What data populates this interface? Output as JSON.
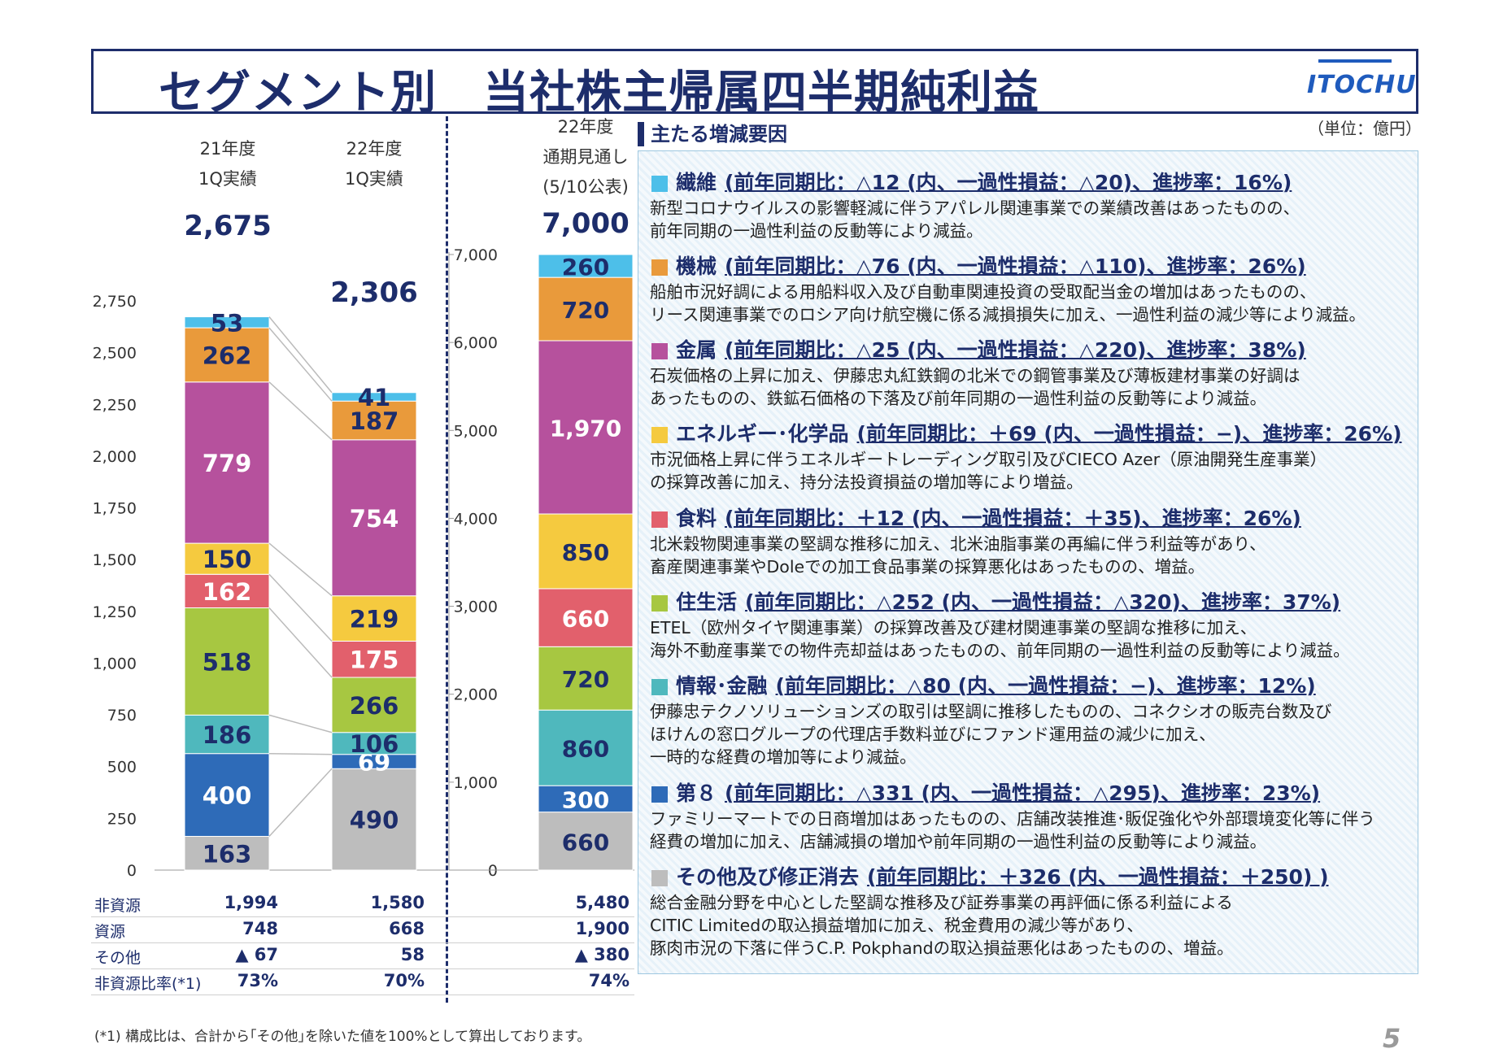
{
  "title": "セグメント別　当社株主帰属四半期純利益",
  "logo_text": "ITOCHU",
  "columns": [
    {
      "head": [
        "21年度",
        "1Q実績"
      ],
      "total": "2,675"
    },
    {
      "head": [
        "22年度",
        "1Q実績"
      ],
      "total": "2,306"
    },
    {
      "head": [
        "22年度",
        "通期見通し",
        "(5/10公表)"
      ],
      "total": "7,000"
    }
  ],
  "summary": {
    "labels": [
      "非資源",
      "資源",
      "その他",
      "非資源比率(*1)"
    ],
    "col1": [
      "1,994",
      "748",
      "▲ 67",
      "73%"
    ],
    "col2": [
      "1,580",
      "668",
      "58",
      "70%"
    ],
    "col3": [
      "5,480",
      "1,900",
      "▲ 380",
      "74%"
    ]
  },
  "chart_data": [
    {
      "type": "bar",
      "title": "21年度 1Q実績 / 22年度 1Q実績",
      "stacked": true,
      "categories": [
        "21年度 1Q実績",
        "22年度 1Q実績"
      ],
      "series": [
        {
          "name": "その他及び修正消去",
          "color": "#bdbdbd",
          "values": [
            163,
            490
          ]
        },
        {
          "name": "第８",
          "color": "#2e6bb8",
          "values": [
            400,
            69
          ]
        },
        {
          "name": "情報・金融",
          "color": "#4fb8bd",
          "values": [
            186,
            106
          ]
        },
        {
          "name": "住生活",
          "color": "#a7c741",
          "values": [
            518,
            266
          ]
        },
        {
          "name": "食料",
          "color": "#e2606c",
          "values": [
            162,
            175
          ]
        },
        {
          "name": "エネルギー・化学品",
          "color": "#f5ca3f",
          "values": [
            150,
            219
          ]
        },
        {
          "name": "金属",
          "color": "#b6519d",
          "values": [
            779,
            754
          ]
        },
        {
          "name": "機械",
          "color": "#e99a3b",
          "values": [
            262,
            187
          ]
        },
        {
          "name": "繊維",
          "color": "#4dbfe9",
          "values": [
            53,
            41
          ]
        }
      ],
      "labels": [
        [
          "163",
          "400",
          "186",
          "518",
          "162",
          "150",
          "779",
          "262",
          "53"
        ],
        [
          "490",
          "69",
          "106",
          "266",
          "175",
          "219",
          "754",
          "187",
          "41"
        ]
      ],
      "ylim": [
        0,
        2750
      ],
      "yticks": [
        "0",
        "250",
        "500",
        "750",
        "1,000",
        "1,250",
        "1,500",
        "1,750",
        "2,000",
        "2,250",
        "2,500",
        "2,750"
      ]
    },
    {
      "type": "bar",
      "title": "22年度 通期見通し (5/10公表)",
      "stacked": true,
      "categories": [
        "22年度 通期見通し"
      ],
      "series": [
        {
          "name": "その他及び修正消去",
          "color": "#bdbdbd",
          "values": [
            660
          ]
        },
        {
          "name": "第８",
          "color": "#2e6bb8",
          "values": [
            300
          ]
        },
        {
          "name": "情報・金融",
          "color": "#4fb8bd",
          "values": [
            860
          ]
        },
        {
          "name": "住生活",
          "color": "#a7c741",
          "values": [
            720
          ]
        },
        {
          "name": "食料",
          "color": "#e2606c",
          "values": [
            660
          ]
        },
        {
          "name": "エネルギー・化学品",
          "color": "#f5ca3f",
          "values": [
            850
          ]
        },
        {
          "name": "金属",
          "color": "#b6519d",
          "values": [
            1970
          ]
        },
        {
          "name": "機械",
          "color": "#e99a3b",
          "values": [
            720
          ]
        },
        {
          "name": "繊維",
          "color": "#4dbfe9",
          "values": [
            260
          ]
        }
      ],
      "labels": [
        [
          "660",
          "300",
          "860",
          "720",
          "660",
          "850",
          "1,970",
          "720",
          "260"
        ]
      ],
      "ylim": [
        0,
        7000
      ],
      "yticks": [
        "0",
        "1,000",
        "2,000",
        "3,000",
        "4,000",
        "5,000",
        "6,000",
        "7,000"
      ]
    }
  ],
  "panel": {
    "head": "主たる増減要因",
    "unit": "（単位：億円）",
    "segments": [
      {
        "color": "#4dbfe9",
        "name": "繊維",
        "stat": "(前年同期比：△12 (内、一過性損益：△20)、進捗率：16%)",
        "lines": [
          "新型コロナウイルスの影響軽減に伴うアパレル関連事業での業績改善はあったものの、",
          "前年同期の一過性利益の反動等により減益。"
        ]
      },
      {
        "color": "#e99a3b",
        "name": "機械",
        "stat": "(前年同期比：△76 (内、一過性損益：△110)、進捗率：26%)",
        "lines": [
          "船舶市況好調による用船料収入及び自動車関連投資の受取配当金の増加はあったものの、",
          "リース関連事業でのロシア向け航空機に係る減損損失に加え、一過性利益の減少等により減益。"
        ]
      },
      {
        "color": "#b6519d",
        "name": "金属",
        "stat": "(前年同期比：△25 (内、一過性損益：△220)、進捗率：38%)",
        "lines": [
          "石炭価格の上昇に加え、伊藤忠丸紅鉄鋼の北米での鋼管事業及び薄板建材事業の好調は",
          "あったものの、鉄鉱石価格の下落及び前年同期の一過性利益の反動等により減益。"
        ]
      },
      {
        "color": "#f5ca3f",
        "name": "エネルギー･化学品",
        "stat": "(前年同期比：＋69 (内、一過性損益：−)、進捗率：26%)",
        "lines": [
          "市況価格上昇に伴うエネルギートレーディング取引及びCIECO Azer（原油開発生産事業）",
          "の採算改善に加え、持分法投資損益の増加等により増益。"
        ]
      },
      {
        "color": "#e2606c",
        "name": "食料",
        "stat": "(前年同期比：＋12 (内、一過性損益：＋35)、進捗率：26%)",
        "lines": [
          "北米穀物関連事業の堅調な推移に加え、北米油脂事業の再編に伴う利益等があり、",
          "畜産関連事業やDoleでの加工食品事業の採算悪化はあったものの、増益。"
        ]
      },
      {
        "color": "#a7c741",
        "name": "住生活",
        "stat": "(前年同期比：△252 (内、一過性損益：△320)、進捗率：37%)",
        "lines": [
          "ETEL（欧州タイヤ関連事業）の採算改善及び建材関連事業の堅調な推移に加え、",
          "海外不動産事業での物件売却益はあったものの、前年同期の一過性利益の反動等により減益。"
        ]
      },
      {
        "color": "#4fb8bd",
        "name": "情報･金融",
        "stat": "(前年同期比：△80 (内、一過性損益：−)、進捗率：12%)",
        "lines": [
          "伊藤忠テクノソリューションズの取引は堅調に推移したものの、コネクシオの販売台数及び",
          "ほけんの窓口グループの代理店手数料並びにファンド運用益の減少に加え、",
          "一時的な経費の増加等により減益。"
        ]
      },
      {
        "color": "#2e6bb8",
        "name": "第８",
        "stat": "(前年同期比：△331 (内、一過性損益：△295)、進捗率：23%)",
        "lines": [
          "ファミリーマートでの日商増加はあったものの、店舗改装推進･販促強化や外部環境変化等に伴う",
          "経費の増加に加え、店舗減損の増加や前年同期の一過性利益の反動等により減益。"
        ]
      },
      {
        "color": "#bdbdbd",
        "name": "その他及び修正消去",
        "stat": "(前年同期比：＋326 (内、一過性損益：＋250) )",
        "lines": [
          "総合金融分野を中心とした堅調な推移及び証券事業の再評価に係る利益による",
          "CITIC Limitedの取込損益増加に加え、税金費用の減少等があり、",
          "豚肉市況の下落に伴うC.P. Pokphandの取込損益悪化はあったものの、増益。"
        ]
      }
    ]
  },
  "footnote": "(*1) 構成比は、合計から｢その他｣を除いた値を100%として算出しております。",
  "page_number": "5"
}
